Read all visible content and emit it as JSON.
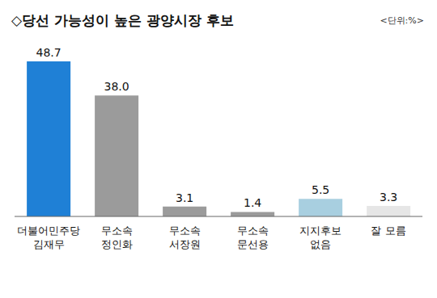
{
  "chart_data": {
    "type": "bar",
    "title": "◇당선 가능성이 높은 광양시장 후보",
    "subtitle": "<단위:%>",
    "categories": [
      "더불어민주당\n김재무",
      "무소속\n정인화",
      "무소속\n서장원",
      "무소속\n문선용",
      "지지후보\n없음",
      "잘 모름"
    ],
    "values": [
      48.7,
      38.0,
      3.1,
      1.4,
      5.5,
      3.3
    ],
    "value_labels": [
      "48.7",
      "38.0",
      "3.1",
      "1.4",
      "5.5",
      "3.3"
    ],
    "colors": [
      "#1f80d6",
      "#9b9b9b",
      "#9b9b9b",
      "#9b9b9b",
      "#a8cfe0",
      "#e6e6e6"
    ],
    "data_labels": true,
    "tick_labels": "x",
    "grid": false
  }
}
